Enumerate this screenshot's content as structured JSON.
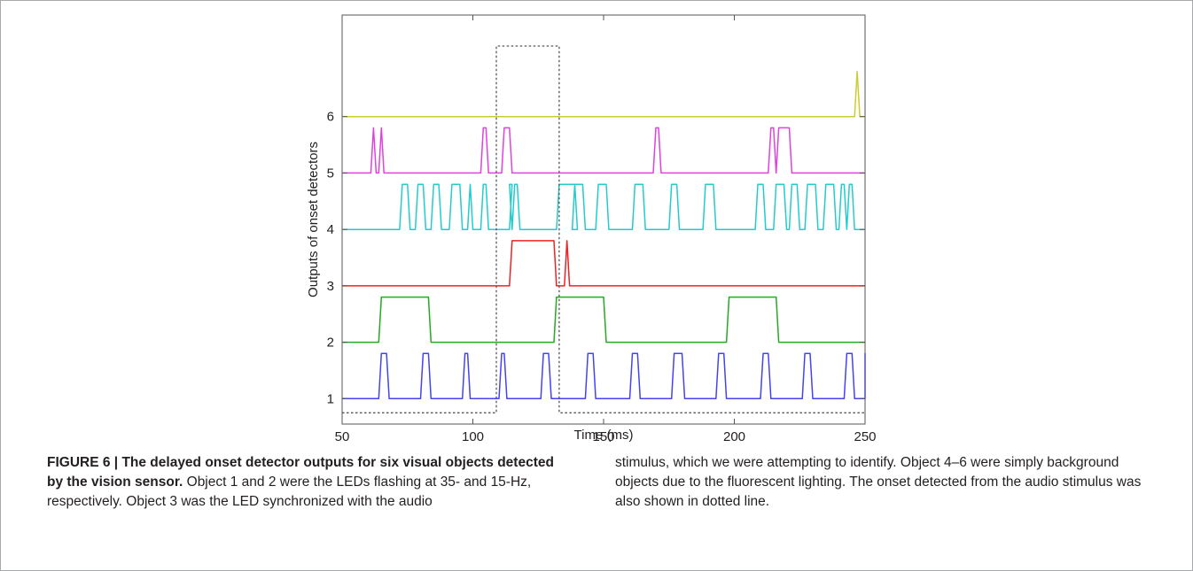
{
  "chart_data": {
    "type": "line",
    "xlabel": "Time (ms)",
    "ylabel": "Outputs of onset detectors",
    "xlim": [
      50,
      250
    ],
    "ylim": [
      0.55,
      7.8
    ],
    "xticks": [
      50,
      100,
      150,
      200,
      250
    ],
    "yticks": [
      1,
      2,
      3,
      4,
      5,
      6
    ],
    "grid": false,
    "legend": "none",
    "pulse_height": 0.8,
    "series": [
      {
        "object": 1,
        "color": "#4444ee",
        "baseline": 1,
        "pulses": [
          [
            64,
            68
          ],
          [
            80,
            84
          ],
          [
            96,
            99
          ],
          [
            110,
            113
          ],
          [
            126,
            130
          ],
          [
            143,
            147
          ],
          [
            160,
            164
          ],
          [
            176,
            181
          ],
          [
            193,
            197
          ],
          [
            210,
            214
          ],
          [
            226,
            230
          ],
          [
            242,
            246
          ],
          [
            250,
            251
          ]
        ]
      },
      {
        "object": 2,
        "color": "#22aa22",
        "baseline": 2,
        "pulses": [
          [
            64,
            84
          ],
          [
            131,
            151
          ],
          [
            197,
            217
          ]
        ]
      },
      {
        "object": 3,
        "color": "#ee2222",
        "baseline": 3,
        "pulses": [
          [
            114,
            132
          ],
          [
            135,
            137
          ]
        ]
      },
      {
        "object": 4,
        "color": "#22cccc",
        "baseline": 4,
        "pulses": [
          [
            72,
            76
          ],
          [
            78,
            82
          ],
          [
            84,
            88
          ],
          [
            91,
            96
          ],
          [
            98,
            100
          ],
          [
            103,
            106
          ],
          [
            114,
            115
          ],
          [
            115,
            118
          ],
          [
            132,
            140
          ],
          [
            138,
            143
          ],
          [
            147,
            152
          ],
          [
            161,
            166
          ],
          [
            175,
            179
          ],
          [
            188,
            193
          ],
          [
            208,
            212
          ],
          [
            215,
            220
          ],
          [
            221,
            225
          ],
          [
            227,
            232
          ],
          [
            234,
            239
          ],
          [
            240,
            243
          ],
          [
            243,
            246
          ]
        ]
      },
      {
        "object": 5,
        "color": "#dd44dd",
        "baseline": 5,
        "pulses": [
          [
            61,
            63
          ],
          [
            64,
            66
          ],
          [
            103,
            106
          ],
          [
            111,
            115
          ],
          [
            169,
            172
          ],
          [
            213,
            216
          ],
          [
            216,
            222
          ]
        ]
      },
      {
        "object": 6,
        "color": "#cccc33",
        "baseline": 6,
        "pulses": [
          [
            246,
            248
          ]
        ]
      }
    ],
    "audio_onset": {
      "color": "#555555",
      "style": "dotted",
      "low": 0.75,
      "high": 7.25,
      "onset": [
        109,
        133
      ]
    }
  },
  "caption": {
    "label": "FIGURE 6 | ",
    "title": "The delayed onset detector outputs for six visual objects detected by the vision sensor.",
    "text_left": " Object 1 and 2 were the LEDs flashing at 35- and 15-Hz, respectively. Object 3 was the LED synchronized with the audio",
    "text_right": "stimulus, which we were attempting to identify. Object 4–6 were simply background objects due to the fluorescent lighting. The onset detected from the audio stimulus was also shown in dotted line."
  }
}
